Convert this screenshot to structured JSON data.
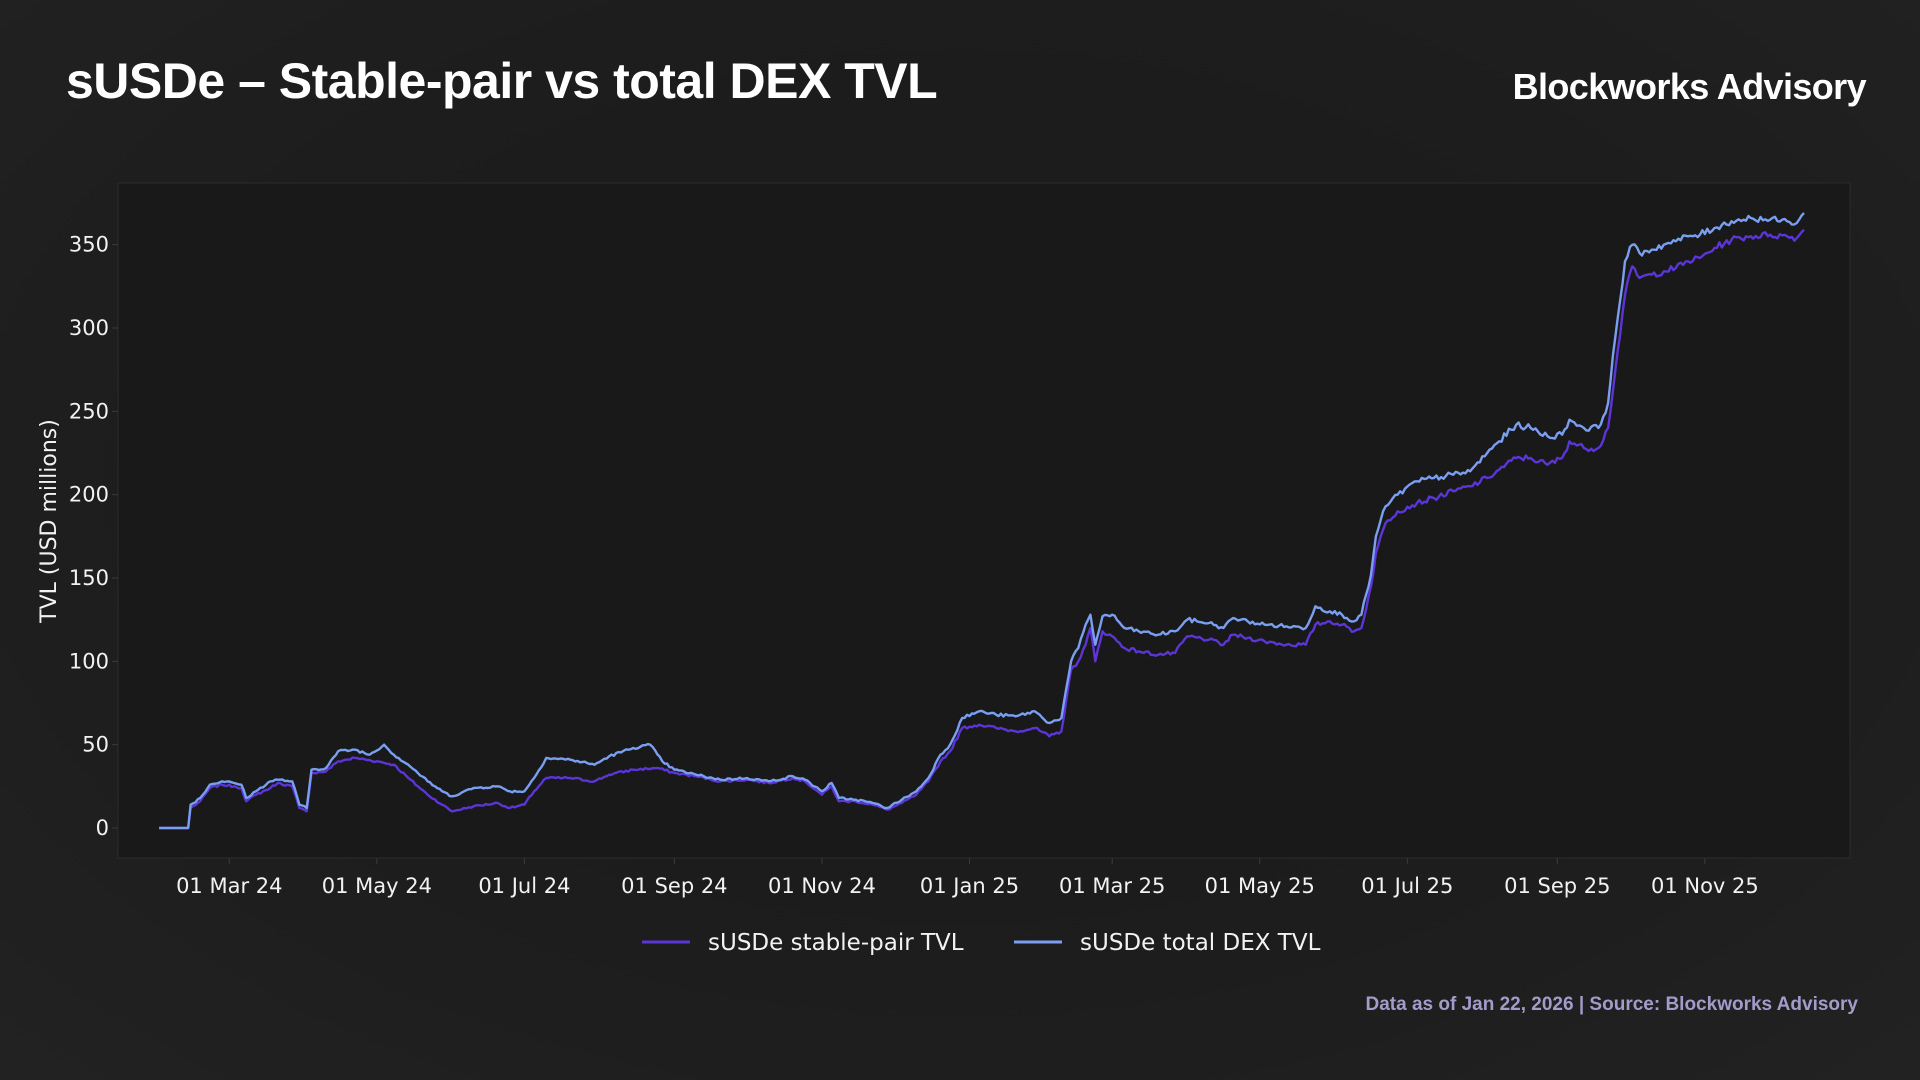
{
  "header": {
    "title": "sUSDe – Stable-pair vs total DEX TVL",
    "brand": "Blockworks Advisory"
  },
  "footer": {
    "source": "Data as of Jan 22, 2026 | Source: Blockworks Advisory"
  },
  "colors": {
    "background": "#1c1c1c",
    "plot_background": "#191919",
    "stable_pair": "#5b35d5",
    "total_dex": "#7a9ef0",
    "source_text": "#a39bc9"
  },
  "chart_data": {
    "type": "line",
    "title": "sUSDe – Stable-pair vs total DEX TVL",
    "xlabel": "",
    "ylabel": "TVL (USD millions)",
    "xlim": [
      "2024-01-15",
      "2025-12-31"
    ],
    "ylim": [
      -18,
      387
    ],
    "y_ticks": [
      0,
      50,
      100,
      150,
      200,
      250,
      300,
      350
    ],
    "x_ticks": [
      {
        "date": "2024-03-01",
        "label": "01 Mar 24"
      },
      {
        "date": "2024-05-01",
        "label": "01 May 24"
      },
      {
        "date": "2024-07-01",
        "label": "01 Jul 24"
      },
      {
        "date": "2024-09-01",
        "label": "01 Sep 24"
      },
      {
        "date": "2024-11-01",
        "label": "01 Nov 24"
      },
      {
        "date": "2025-01-01",
        "label": "01 Jan 25"
      },
      {
        "date": "2025-03-01",
        "label": "01 Mar 25"
      },
      {
        "date": "2025-05-01",
        "label": "01 May 25"
      },
      {
        "date": "2025-07-01",
        "label": "01 Jul 25"
      },
      {
        "date": "2025-09-01",
        "label": "01 Sep 25"
      },
      {
        "date": "2025-11-01",
        "label": "01 Nov 25"
      }
    ],
    "grid": false,
    "legend_position": "bottom-center",
    "series": [
      {
        "name": "sUSDe stable-pair TVL",
        "color": "#5b35d5",
        "points": [
          [
            "2024-02-01",
            0
          ],
          [
            "2024-02-13",
            0
          ],
          [
            "2024-02-14",
            12
          ],
          [
            "2024-02-18",
            16
          ],
          [
            "2024-02-22",
            24
          ],
          [
            "2024-02-27",
            26
          ],
          [
            "2024-03-03",
            25
          ],
          [
            "2024-03-06",
            24
          ],
          [
            "2024-03-08",
            16
          ],
          [
            "2024-03-12",
            20
          ],
          [
            "2024-03-18",
            24
          ],
          [
            "2024-03-21",
            27
          ],
          [
            "2024-03-27",
            25
          ],
          [
            "2024-03-30",
            12
          ],
          [
            "2024-04-02",
            10
          ],
          [
            "2024-04-04",
            33
          ],
          [
            "2024-04-10",
            34
          ],
          [
            "2024-04-15",
            40
          ],
          [
            "2024-04-22",
            42
          ],
          [
            "2024-05-01",
            40
          ],
          [
            "2024-05-08",
            38
          ],
          [
            "2024-05-14",
            30
          ],
          [
            "2024-05-22",
            20
          ],
          [
            "2024-05-28",
            14
          ],
          [
            "2024-06-01",
            10
          ],
          [
            "2024-06-10",
            13
          ],
          [
            "2024-06-20",
            15
          ],
          [
            "2024-06-25",
            12
          ],
          [
            "2024-07-01",
            14
          ],
          [
            "2024-07-05",
            22
          ],
          [
            "2024-07-10",
            30
          ],
          [
            "2024-07-20",
            30
          ],
          [
            "2024-07-30",
            28
          ],
          [
            "2024-08-05",
            32
          ],
          [
            "2024-08-15",
            35
          ],
          [
            "2024-08-25",
            36
          ],
          [
            "2024-09-01",
            33
          ],
          [
            "2024-09-10",
            31
          ],
          [
            "2024-09-20",
            28
          ],
          [
            "2024-10-01",
            29
          ],
          [
            "2024-10-10",
            27
          ],
          [
            "2024-10-20",
            30
          ],
          [
            "2024-10-25",
            28
          ],
          [
            "2024-11-01",
            20
          ],
          [
            "2024-11-05",
            25
          ],
          [
            "2024-11-08",
            16
          ],
          [
            "2024-11-15",
            16
          ],
          [
            "2024-11-22",
            14
          ],
          [
            "2024-11-28",
            11
          ],
          [
            "2024-12-04",
            15
          ],
          [
            "2024-12-10",
            20
          ],
          [
            "2024-12-15",
            28
          ],
          [
            "2024-12-20",
            40
          ],
          [
            "2024-12-24",
            46
          ],
          [
            "2024-12-29",
            60
          ],
          [
            "2025-01-05",
            62
          ],
          [
            "2025-01-12",
            60
          ],
          [
            "2025-01-20",
            58
          ],
          [
            "2025-01-28",
            60
          ],
          [
            "2025-02-03",
            55
          ],
          [
            "2025-02-08",
            58
          ],
          [
            "2025-02-12",
            95
          ],
          [
            "2025-02-15",
            100
          ],
          [
            "2025-02-18",
            110
          ],
          [
            "2025-02-20",
            120
          ],
          [
            "2025-02-22",
            100
          ],
          [
            "2025-02-25",
            118
          ],
          [
            "2025-03-01",
            115
          ],
          [
            "2025-03-06",
            108
          ],
          [
            "2025-03-12",
            106
          ],
          [
            "2025-03-20",
            104
          ],
          [
            "2025-03-27",
            105
          ],
          [
            "2025-04-01",
            115
          ],
          [
            "2025-04-10",
            113
          ],
          [
            "2025-04-16",
            110
          ],
          [
            "2025-04-20",
            116
          ],
          [
            "2025-04-26",
            114
          ],
          [
            "2025-05-03",
            112
          ],
          [
            "2025-05-12",
            110
          ],
          [
            "2025-05-20",
            110
          ],
          [
            "2025-05-24",
            122
          ],
          [
            "2025-05-30",
            124
          ],
          [
            "2025-06-04",
            122
          ],
          [
            "2025-06-09",
            118
          ],
          [
            "2025-06-12",
            120
          ],
          [
            "2025-06-16",
            145
          ],
          [
            "2025-06-18",
            165
          ],
          [
            "2025-06-22",
            183
          ],
          [
            "2025-06-27",
            190
          ],
          [
            "2025-07-05",
            195
          ],
          [
            "2025-07-12",
            198
          ],
          [
            "2025-07-20",
            202
          ],
          [
            "2025-07-27",
            205
          ],
          [
            "2025-08-03",
            210
          ],
          [
            "2025-08-08",
            215
          ],
          [
            "2025-08-15",
            222
          ],
          [
            "2025-08-21",
            222
          ],
          [
            "2025-08-28",
            218
          ],
          [
            "2025-09-03",
            222
          ],
          [
            "2025-09-06",
            232
          ],
          [
            "2025-09-12",
            228
          ],
          [
            "2025-09-18",
            228
          ],
          [
            "2025-09-22",
            240
          ],
          [
            "2025-09-25",
            275
          ],
          [
            "2025-09-29",
            320
          ],
          [
            "2025-10-02",
            337
          ],
          [
            "2025-10-05",
            330
          ],
          [
            "2025-10-10",
            332
          ],
          [
            "2025-10-15",
            334
          ],
          [
            "2025-10-20",
            336
          ],
          [
            "2025-10-25",
            340
          ],
          [
            "2025-10-30",
            342
          ],
          [
            "2025-11-05",
            348
          ],
          [
            "2025-11-12",
            353
          ],
          [
            "2025-11-20",
            355
          ],
          [
            "2025-11-28",
            356
          ],
          [
            "2025-12-05",
            355
          ],
          [
            "2025-12-09",
            354
          ],
          [
            "2025-12-12",
            359
          ]
        ]
      },
      {
        "name": "sUSDe total DEX TVL",
        "color": "#7a9ef0",
        "points": [
          [
            "2024-02-01",
            0
          ],
          [
            "2024-02-13",
            0
          ],
          [
            "2024-02-14",
            14
          ],
          [
            "2024-02-18",
            18
          ],
          [
            "2024-02-22",
            26
          ],
          [
            "2024-02-27",
            28
          ],
          [
            "2024-03-03",
            27
          ],
          [
            "2024-03-06",
            26
          ],
          [
            "2024-03-08",
            18
          ],
          [
            "2024-03-12",
            22
          ],
          [
            "2024-03-18",
            28
          ],
          [
            "2024-03-21",
            29
          ],
          [
            "2024-03-27",
            28
          ],
          [
            "2024-03-30",
            14
          ],
          [
            "2024-04-02",
            12
          ],
          [
            "2024-04-04",
            35
          ],
          [
            "2024-04-10",
            36
          ],
          [
            "2024-04-15",
            46
          ],
          [
            "2024-04-22",
            47
          ],
          [
            "2024-04-28",
            44
          ],
          [
            "2024-05-04",
            50
          ],
          [
            "2024-05-08",
            44
          ],
          [
            "2024-05-14",
            38
          ],
          [
            "2024-05-22",
            28
          ],
          [
            "2024-05-28",
            22
          ],
          [
            "2024-06-01",
            19
          ],
          [
            "2024-06-10",
            24
          ],
          [
            "2024-06-20",
            25
          ],
          [
            "2024-06-25",
            22
          ],
          [
            "2024-07-01",
            22
          ],
          [
            "2024-07-05",
            30
          ],
          [
            "2024-07-10",
            42
          ],
          [
            "2024-07-20",
            41
          ],
          [
            "2024-07-30",
            38
          ],
          [
            "2024-08-05",
            43
          ],
          [
            "2024-08-15",
            48
          ],
          [
            "2024-08-22",
            50
          ],
          [
            "2024-08-27",
            40
          ],
          [
            "2024-09-01",
            35
          ],
          [
            "2024-09-10",
            32
          ],
          [
            "2024-09-20",
            29
          ],
          [
            "2024-10-01",
            30
          ],
          [
            "2024-10-10",
            28
          ],
          [
            "2024-10-20",
            31
          ],
          [
            "2024-10-25",
            29
          ],
          [
            "2024-11-01",
            22
          ],
          [
            "2024-11-05",
            27
          ],
          [
            "2024-11-08",
            18
          ],
          [
            "2024-11-15",
            17
          ],
          [
            "2024-11-22",
            15
          ],
          [
            "2024-11-28",
            12
          ],
          [
            "2024-12-04",
            17
          ],
          [
            "2024-12-10",
            22
          ],
          [
            "2024-12-15",
            30
          ],
          [
            "2024-12-20",
            44
          ],
          [
            "2024-12-24",
            50
          ],
          [
            "2024-12-29",
            66
          ],
          [
            "2025-01-05",
            70
          ],
          [
            "2025-01-12",
            68
          ],
          [
            "2025-01-20",
            67
          ],
          [
            "2025-01-28",
            70
          ],
          [
            "2025-02-03",
            63
          ],
          [
            "2025-02-08",
            66
          ],
          [
            "2025-02-12",
            100
          ],
          [
            "2025-02-15",
            108
          ],
          [
            "2025-02-18",
            122
          ],
          [
            "2025-02-20",
            128
          ],
          [
            "2025-02-22",
            110
          ],
          [
            "2025-02-25",
            127
          ],
          [
            "2025-03-01",
            128
          ],
          [
            "2025-03-06",
            120
          ],
          [
            "2025-03-12",
            118
          ],
          [
            "2025-03-20",
            116
          ],
          [
            "2025-03-27",
            118
          ],
          [
            "2025-04-01",
            125
          ],
          [
            "2025-04-10",
            123
          ],
          [
            "2025-04-16",
            120
          ],
          [
            "2025-04-20",
            126
          ],
          [
            "2025-04-26",
            124
          ],
          [
            "2025-05-03",
            122
          ],
          [
            "2025-05-12",
            121
          ],
          [
            "2025-05-20",
            120
          ],
          [
            "2025-05-24",
            133
          ],
          [
            "2025-05-30",
            130
          ],
          [
            "2025-06-04",
            128
          ],
          [
            "2025-06-09",
            124
          ],
          [
            "2025-06-12",
            128
          ],
          [
            "2025-06-16",
            152
          ],
          [
            "2025-06-18",
            175
          ],
          [
            "2025-06-22",
            193
          ],
          [
            "2025-06-27",
            200
          ],
          [
            "2025-07-05",
            208
          ],
          [
            "2025-07-12",
            210
          ],
          [
            "2025-07-20",
            212
          ],
          [
            "2025-07-27",
            214
          ],
          [
            "2025-08-03",
            225
          ],
          [
            "2025-08-08",
            232
          ],
          [
            "2025-08-15",
            242
          ],
          [
            "2025-08-21",
            240
          ],
          [
            "2025-08-28",
            235
          ],
          [
            "2025-09-03",
            236
          ],
          [
            "2025-09-06",
            245
          ],
          [
            "2025-09-12",
            240
          ],
          [
            "2025-09-18",
            240
          ],
          [
            "2025-09-22",
            255
          ],
          [
            "2025-09-25",
            295
          ],
          [
            "2025-09-29",
            340
          ],
          [
            "2025-10-02",
            350
          ],
          [
            "2025-10-05",
            345
          ],
          [
            "2025-10-10",
            347
          ],
          [
            "2025-10-15",
            350
          ],
          [
            "2025-10-20",
            352
          ],
          [
            "2025-10-25",
            355
          ],
          [
            "2025-10-30",
            356
          ],
          [
            "2025-11-05",
            360
          ],
          [
            "2025-11-12",
            364
          ],
          [
            "2025-11-20",
            366
          ],
          [
            "2025-11-28",
            365
          ],
          [
            "2025-12-05",
            364
          ],
          [
            "2025-12-09",
            363
          ],
          [
            "2025-12-12",
            369
          ]
        ]
      }
    ]
  }
}
